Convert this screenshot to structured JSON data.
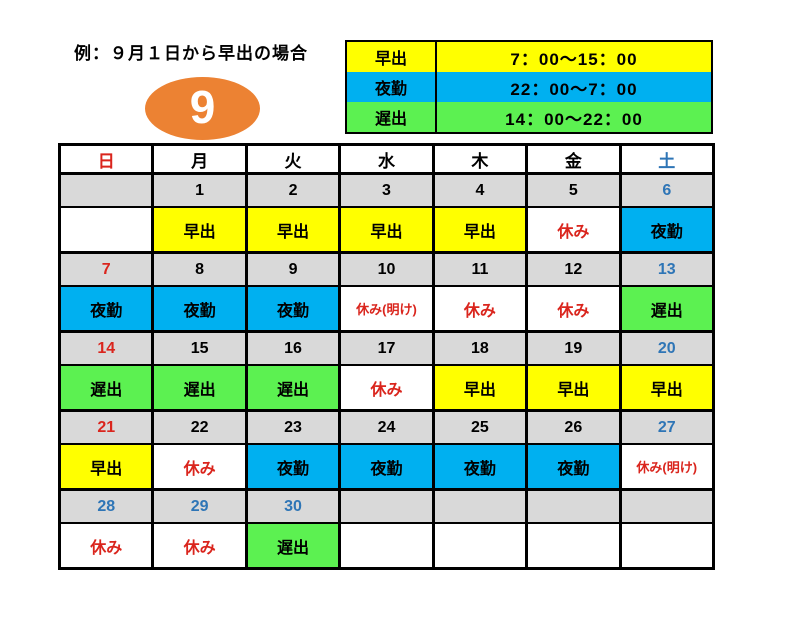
{
  "title": "例：９月１日から早出の場合",
  "month": {
    "number": "9"
  },
  "legend": {
    "rows": [
      {
        "label": "早出",
        "time": "7：00～15：00",
        "bg": "yellow"
      },
      {
        "label": "夜勤",
        "time": "22：00～7：00",
        "bg": "blue"
      },
      {
        "label": "遅出",
        "time": "14：00～22：00",
        "bg": "green"
      }
    ]
  },
  "calendar": {
    "day_headers": [
      {
        "label": "日",
        "fg": "red"
      },
      {
        "label": "月",
        "fg": "black"
      },
      {
        "label": "火",
        "fg": "black"
      },
      {
        "label": "水",
        "fg": "black"
      },
      {
        "label": "木",
        "fg": "black"
      },
      {
        "label": "金",
        "fg": "black"
      },
      {
        "label": "土",
        "fg": "blueText"
      }
    ],
    "weeks": [
      {
        "dates": [
          {
            "t": "",
            "fg": "black"
          },
          {
            "t": "1",
            "fg": "black"
          },
          {
            "t": "2",
            "fg": "black"
          },
          {
            "t": "3",
            "fg": "black"
          },
          {
            "t": "4",
            "fg": "black"
          },
          {
            "t": "5",
            "fg": "black"
          },
          {
            "t": "6",
            "fg": "blueText"
          }
        ],
        "shifts": [
          {
            "t": "",
            "bg": "white",
            "fg": "black"
          },
          {
            "t": "早出",
            "bg": "yellow",
            "fg": "black"
          },
          {
            "t": "早出",
            "bg": "yellow",
            "fg": "black"
          },
          {
            "t": "早出",
            "bg": "yellow",
            "fg": "black"
          },
          {
            "t": "早出",
            "bg": "yellow",
            "fg": "black"
          },
          {
            "t": "休み",
            "bg": "white",
            "fg": "red"
          },
          {
            "t": "夜勤",
            "bg": "blue",
            "fg": "black"
          }
        ]
      },
      {
        "dates": [
          {
            "t": "7",
            "fg": "red"
          },
          {
            "t": "8",
            "fg": "black"
          },
          {
            "t": "9",
            "fg": "black"
          },
          {
            "t": "10",
            "fg": "black"
          },
          {
            "t": "11",
            "fg": "black"
          },
          {
            "t": "12",
            "fg": "black"
          },
          {
            "t": "13",
            "fg": "blueText"
          }
        ],
        "shifts": [
          {
            "t": "夜勤",
            "bg": "blue",
            "fg": "black"
          },
          {
            "t": "夜勤",
            "bg": "blue",
            "fg": "black"
          },
          {
            "t": "夜勤",
            "bg": "blue",
            "fg": "black"
          },
          {
            "t": "休み(明け)",
            "bg": "white",
            "fg": "red",
            "small": true
          },
          {
            "t": "休み",
            "bg": "white",
            "fg": "red"
          },
          {
            "t": "休み",
            "bg": "white",
            "fg": "red"
          },
          {
            "t": "遅出",
            "bg": "green",
            "fg": "black"
          }
        ]
      },
      {
        "dates": [
          {
            "t": "14",
            "fg": "red"
          },
          {
            "t": "15",
            "fg": "black"
          },
          {
            "t": "16",
            "fg": "black"
          },
          {
            "t": "17",
            "fg": "black"
          },
          {
            "t": "18",
            "fg": "black"
          },
          {
            "t": "19",
            "fg": "black"
          },
          {
            "t": "20",
            "fg": "blueText"
          }
        ],
        "shifts": [
          {
            "t": "遅出",
            "bg": "green",
            "fg": "black"
          },
          {
            "t": "遅出",
            "bg": "green",
            "fg": "black"
          },
          {
            "t": "遅出",
            "bg": "green",
            "fg": "black"
          },
          {
            "t": "休み",
            "bg": "white",
            "fg": "red"
          },
          {
            "t": "早出",
            "bg": "yellow",
            "fg": "black"
          },
          {
            "t": "早出",
            "bg": "yellow",
            "fg": "black"
          },
          {
            "t": "早出",
            "bg": "yellow",
            "fg": "black"
          }
        ]
      },
      {
        "dates": [
          {
            "t": "21",
            "fg": "red"
          },
          {
            "t": "22",
            "fg": "black"
          },
          {
            "t": "23",
            "fg": "black"
          },
          {
            "t": "24",
            "fg": "black"
          },
          {
            "t": "25",
            "fg": "black"
          },
          {
            "t": "26",
            "fg": "black"
          },
          {
            "t": "27",
            "fg": "blueText"
          }
        ],
        "shifts": [
          {
            "t": "早出",
            "bg": "yellow",
            "fg": "black"
          },
          {
            "t": "休み",
            "bg": "white",
            "fg": "red"
          },
          {
            "t": "夜勤",
            "bg": "blue",
            "fg": "black"
          },
          {
            "t": "夜勤",
            "bg": "blue",
            "fg": "black"
          },
          {
            "t": "夜勤",
            "bg": "blue",
            "fg": "black"
          },
          {
            "t": "夜勤",
            "bg": "blue",
            "fg": "black"
          },
          {
            "t": "休み(明け)",
            "bg": "white",
            "fg": "red",
            "small": true
          }
        ]
      },
      {
        "dates": [
          {
            "t": "28",
            "fg": "blueText"
          },
          {
            "t": "29",
            "fg": "blueText"
          },
          {
            "t": "30",
            "fg": "blueText"
          },
          {
            "t": "",
            "fg": "black"
          },
          {
            "t": "",
            "fg": "black"
          },
          {
            "t": "",
            "fg": "black"
          },
          {
            "t": "",
            "fg": "black"
          }
        ],
        "shifts": [
          {
            "t": "休み",
            "bg": "white",
            "fg": "red"
          },
          {
            "t": "休み",
            "bg": "white",
            "fg": "red"
          },
          {
            "t": "遅出",
            "bg": "green",
            "fg": "black"
          },
          {
            "t": "",
            "bg": "white",
            "fg": "black"
          },
          {
            "t": "",
            "bg": "white",
            "fg": "black"
          },
          {
            "t": "",
            "bg": "white",
            "fg": "black"
          },
          {
            "t": "",
            "bg": "white",
            "fg": "black"
          }
        ]
      }
    ]
  },
  "colors": {
    "yellow": "#FFFF00",
    "blue": "#00B0F0",
    "green": "#5CF151",
    "gray": "#D9D9D9",
    "white": "#FFFFFF",
    "black": "#000000",
    "red": "#DA251D",
    "blueText": "#2E75B6",
    "orange": "#EC8233"
  }
}
